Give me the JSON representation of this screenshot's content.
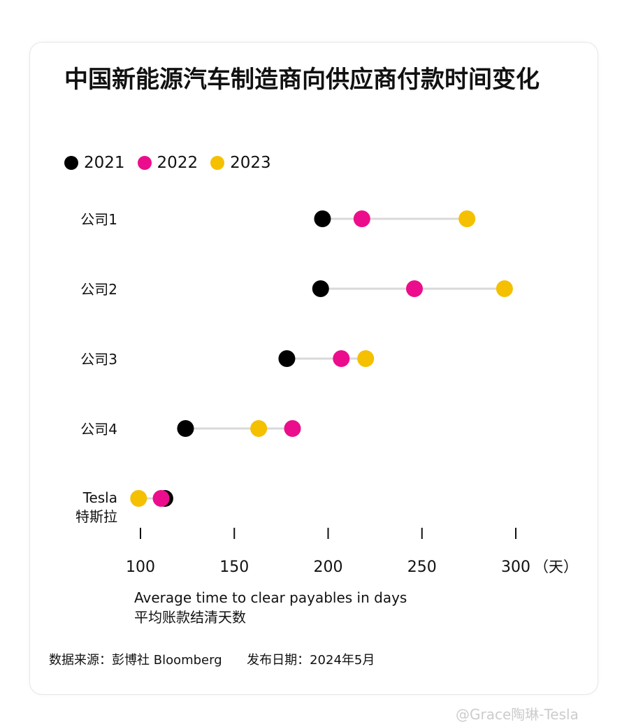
{
  "title": "中国新能源汽车制造商向供应商付款时间变化",
  "source": "数据来源：彭博社 Bloomberg",
  "published": "发布日期：2024年5月",
  "watermark": "@Grace陶琳-Tesla",
  "chart_data": {
    "type": "dumbbell",
    "title": "中国新能源汽车制造商向供应商付款时间变化",
    "xlabel": "Average time to clear payables in days",
    "xlabel_zh": "平均账款结清天数",
    "x_unit": "（天）",
    "xlim": [
      100,
      300
    ],
    "xticks": [
      100,
      150,
      200,
      250,
      300
    ],
    "legend_placement": "top-left",
    "grid": false,
    "categories": [
      "公司1",
      "公司2",
      "公司3",
      "公司4",
      "Tesla 特斯拉"
    ],
    "category_labels": [
      [
        "公司1"
      ],
      [
        "公司2"
      ],
      [
        "公司3"
      ],
      [
        "公司4"
      ],
      [
        "Tesla",
        "特斯拉"
      ]
    ],
    "series": [
      {
        "name": "2021",
        "color": "#000000",
        "values": [
          197,
          196,
          178,
          124,
          113
        ]
      },
      {
        "name": "2022",
        "color": "#ec0d8c",
        "values": [
          218,
          246,
          207,
          181,
          111
        ]
      },
      {
        "name": "2023",
        "color": "#f5c000",
        "values": [
          274,
          294,
          220,
          163,
          99
        ]
      }
    ]
  }
}
